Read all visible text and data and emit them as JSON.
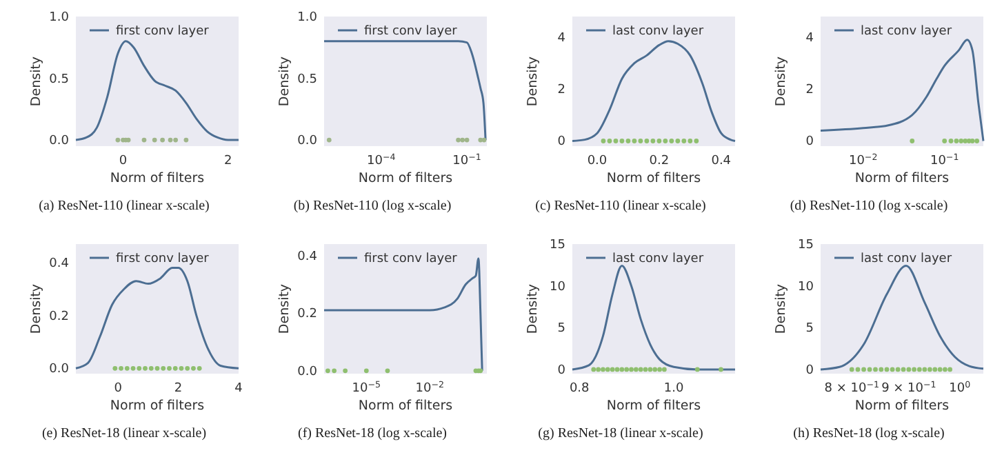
{
  "chart_data": [
    {
      "type": "line",
      "title": "(a) ResNet-110 (linear x-scale)",
      "xlabel": "Norm of filters",
      "ylabel": "Density",
      "legend": "top",
      "xlim": [
        -0.9,
        2.2
      ],
      "ylim": [
        -0.05,
        1.0
      ],
      "xticks": [
        0,
        2
      ],
      "yticks": [
        {
          "value": 0,
          "label": "0.0"
        },
        {
          "value": 0.5,
          "label": "0.5"
        },
        {
          "value": 1,
          "label": "1.0"
        }
      ],
      "series": [
        {
          "name": "first conv layer",
          "color": "#4c6e92",
          "x": [
            -0.9,
            -0.7,
            -0.5,
            -0.3,
            -0.1,
            0.05,
            0.2,
            0.4,
            0.6,
            0.8,
            1.0,
            1.2,
            1.4,
            1.6,
            1.8,
            2.0,
            2.2
          ],
          "values": [
            0,
            0.02,
            0.1,
            0.35,
            0.7,
            0.8,
            0.75,
            0.6,
            0.48,
            0.44,
            0.4,
            0.3,
            0.17,
            0.07,
            0.02,
            0,
            0
          ]
        },
        {
          "type": "scatter",
          "marker": "circle",
          "color": "#9fb58a",
          "x": [
            -0.1,
            0,
            0.05,
            0.1,
            0.4,
            0.6,
            0.75,
            0.9,
            1.0,
            1.2
          ],
          "values": [
            0,
            0,
            0,
            0,
            0,
            0,
            0,
            0,
            0,
            0
          ]
        }
      ]
    },
    {
      "type": "line",
      "title": "(b) ResNet-110 (log x-scale)",
      "xlabel": "Norm of filters",
      "ylabel": "Density",
      "legend": "top",
      "log": "x",
      "xlim": [
        1e-06,
        0.5
      ],
      "ylim": [
        -0.05,
        1.0
      ],
      "xticks": [
        {
          "value": 0.0001,
          "label": "10$^{−4}$"
        },
        {
          "value": 0.1,
          "label": "10$^{−1}$"
        }
      ],
      "yticks": [
        {
          "value": 0,
          "label": "0.0"
        },
        {
          "value": 0.5,
          "label": "0.5"
        },
        {
          "value": 1,
          "label": "1.0"
        }
      ],
      "series": [
        {
          "name": "first conv layer",
          "color": "#4c6e92",
          "x": [
            1e-06,
            0.0001,
            0.01,
            0.05,
            0.1,
            0.15,
            0.25,
            0.3,
            0.38,
            0.45
          ],
          "values": [
            0.8,
            0.8,
            0.8,
            0.8,
            0.79,
            0.7,
            0.5,
            0.42,
            0.3,
            0
          ]
        },
        {
          "type": "scatter",
          "marker": "circle",
          "color": "#9fb58a",
          "x": [
            1.5e-06,
            0.05,
            0.07,
            0.1,
            0.3,
            0.4
          ],
          "values": [
            0,
            0,
            0,
            0,
            0,
            0
          ]
        }
      ]
    },
    {
      "type": "line",
      "title": "(c) ResNet-110 (linear x-scale)",
      "xlabel": "Norm of filters",
      "ylabel": "Density",
      "legend": "top",
      "xlim": [
        -0.08,
        0.445
      ],
      "ylim": [
        -0.2,
        4.8
      ],
      "xticks": [
        {
          "value": 0,
          "label": "0.0"
        },
        {
          "value": 0.2,
          "label": "0.2"
        },
        {
          "value": 0.4,
          "label": "0.4"
        }
      ],
      "yticks": [
        0,
        2,
        4
      ],
      "series": [
        {
          "name": "last conv layer",
          "color": "#4c6e92",
          "x": [
            -0.08,
            -0.04,
            0,
            0.04,
            0.08,
            0.12,
            0.16,
            0.2,
            0.23,
            0.26,
            0.3,
            0.34,
            0.37,
            0.4,
            0.43,
            0.445
          ],
          "values": [
            0,
            0.05,
            0.3,
            1.2,
            2.4,
            3.0,
            3.3,
            3.7,
            3.85,
            3.75,
            3.3,
            2.2,
            1.1,
            0.3,
            0.05,
            0
          ]
        },
        {
          "type": "scatter",
          "marker": "circle",
          "color": "#8fbf6f",
          "x": [
            0.02,
            0.04,
            0.06,
            0.08,
            0.1,
            0.12,
            0.14,
            0.16,
            0.18,
            0.2,
            0.22,
            0.24,
            0.26,
            0.28,
            0.3,
            0.32
          ],
          "values": [
            0,
            0,
            0,
            0,
            0,
            0,
            0,
            0,
            0,
            0,
            0,
            0,
            0,
            0,
            0,
            0
          ]
        }
      ]
    },
    {
      "type": "line",
      "title": "(d) ResNet-110 (log x-scale)",
      "xlabel": "Norm of filters",
      "ylabel": "Density",
      "legend": "top",
      "log": "x",
      "xlim": [
        0.003,
        0.3
      ],
      "ylim": [
        -0.2,
        4.8
      ],
      "xticks": [
        {
          "value": 0.01,
          "label": "10$^{−2}$"
        },
        {
          "value": 0.1,
          "label": "10$^{−1}$"
        }
      ],
      "yticks": [
        0,
        2,
        4
      ],
      "series": [
        {
          "name": "last conv layer",
          "color": "#4c6e92",
          "x": [
            0.003,
            0.01,
            0.02,
            0.04,
            0.06,
            0.08,
            0.1,
            0.15,
            0.19,
            0.22,
            0.26,
            0.3
          ],
          "values": [
            0.4,
            0.5,
            0.6,
            1.0,
            1.7,
            2.4,
            2.9,
            3.5,
            3.9,
            3.5,
            1.5,
            0
          ]
        },
        {
          "type": "scatter",
          "marker": "circle",
          "color": "#8fbf6f",
          "x": [
            0.04,
            0.1,
            0.12,
            0.14,
            0.16,
            0.18,
            0.2,
            0.22,
            0.25
          ],
          "values": [
            0,
            0,
            0,
            0,
            0,
            0,
            0,
            0,
            0
          ]
        }
      ]
    },
    {
      "type": "line",
      "title": "(e) ResNet-18 (linear x-scale)",
      "xlabel": "Norm of filters",
      "ylabel": "Density",
      "legend": "top",
      "xlim": [
        -1.4,
        4.0
      ],
      "ylim": [
        -0.02,
        0.47
      ],
      "xticks": [
        0,
        2,
        4
      ],
      "yticks": [
        {
          "value": 0,
          "label": "0.0"
        },
        {
          "value": 0.2,
          "label": "0.2"
        },
        {
          "value": 0.4,
          "label": "0.4"
        }
      ],
      "series": [
        {
          "name": "first conv layer",
          "color": "#4c6e92",
          "x": [
            -1.4,
            -1,
            -0.6,
            -0.2,
            0.2,
            0.6,
            1.0,
            1.4,
            1.8,
            2.0,
            2.3,
            2.6,
            3.0,
            3.4,
            4.0
          ],
          "values": [
            0,
            0.02,
            0.12,
            0.24,
            0.3,
            0.33,
            0.32,
            0.34,
            0.38,
            0.38,
            0.33,
            0.2,
            0.07,
            0.01,
            0
          ]
        },
        {
          "type": "scatter",
          "marker": "circle",
          "color": "#8fbf6f",
          "x": [
            -0.1,
            0.1,
            0.3,
            0.5,
            0.7,
            0.9,
            1.1,
            1.3,
            1.5,
            1.7,
            1.9,
            2.1,
            2.3,
            2.5,
            2.7
          ],
          "values": [
            0,
            0,
            0,
            0,
            0,
            0,
            0,
            0,
            0,
            0,
            0,
            0,
            0,
            0,
            0
          ]
        }
      ]
    },
    {
      "type": "line",
      "title": "(f) ResNet-18 (log x-scale)",
      "xlabel": "Norm of filters",
      "ylabel": "Density",
      "legend": "top",
      "log": "x",
      "xlim": [
        1e-07,
        5
      ],
      "ylim": [
        -0.01,
        0.44
      ],
      "xticks": [
        {
          "value": 1e-05,
          "label": "10$^{−5}$"
        },
        {
          "value": 0.01,
          "label": "10$^{−2}$"
        }
      ],
      "yticks": [
        {
          "value": 0,
          "label": "0.0"
        },
        {
          "value": 0.2,
          "label": "0.2"
        },
        {
          "value": 0.4,
          "label": "0.4"
        }
      ],
      "series": [
        {
          "name": "first conv layer",
          "color": "#4c6e92",
          "x": [
            1e-07,
            0.0001,
            0.01,
            0.05,
            0.2,
            0.5,
            1,
            1.5,
            2,
            2.5,
            3
          ],
          "values": [
            0.21,
            0.21,
            0.21,
            0.22,
            0.25,
            0.3,
            0.32,
            0.33,
            0.39,
            0.2,
            0
          ]
        },
        {
          "type": "scatter",
          "marker": "circle",
          "color": "#8fbf6f",
          "x": [
            1.5e-07,
            3e-07,
            1e-06,
            1e-05,
            0.0001,
            1.5,
            2,
            2.5
          ],
          "values": [
            0,
            0,
            0,
            0,
            0,
            0,
            0,
            0
          ]
        }
      ]
    },
    {
      "type": "line",
      "title": "(g) ResNet-18 (linear x-scale)",
      "xlabel": "Norm of filters",
      "ylabel": "Density",
      "legend": "top",
      "xlim": [
        0.785,
        1.13
      ],
      "ylim": [
        -0.5,
        15
      ],
      "xticks": [
        {
          "value": 0.8,
          "label": "0.8"
        },
        {
          "value": 1.0,
          "label": "1.0"
        }
      ],
      "yticks": [
        0,
        5,
        10,
        15
      ],
      "series": [
        {
          "name": "last conv layer",
          "color": "#4c6e92",
          "x": [
            0.785,
            0.82,
            0.85,
            0.87,
            0.89,
            0.91,
            0.93,
            0.95,
            0.97,
            1.0,
            1.05,
            1.13
          ],
          "values": [
            0,
            0.5,
            4,
            9,
            12.4,
            10,
            6,
            3,
            1.2,
            0.3,
            0,
            0
          ]
        },
        {
          "type": "scatter",
          "marker": "circle",
          "color": "#8fbf6f",
          "x": [
            0.83,
            0.84,
            0.85,
            0.86,
            0.87,
            0.88,
            0.89,
            0.9,
            0.91,
            0.92,
            0.93,
            0.94,
            0.95,
            0.96,
            0.97,
            0.98,
            1.05,
            1.1
          ],
          "values": [
            0,
            0,
            0,
            0,
            0,
            0,
            0,
            0,
            0,
            0,
            0,
            0,
            0,
            0,
            0,
            0,
            0,
            0
          ]
        }
      ]
    },
    {
      "type": "line",
      "title": "(h) ResNet-18 (log x-scale)",
      "xlabel": "Norm of filters",
      "ylabel": "Density",
      "legend": "top",
      "log": "x",
      "xlim": [
        0.75,
        1.05
      ],
      "ylim": [
        -0.5,
        15
      ],
      "xticks": [
        {
          "value": 0.8,
          "label": "8 × 10$^{−1}$"
        },
        {
          "value": 0.9,
          "label": "9 × 10$^{−1}$"
        },
        {
          "value": 1,
          "label": "10$^{0}$"
        }
      ],
      "yticks": [
        0,
        5,
        10,
        15
      ],
      "series": [
        {
          "name": "last conv layer",
          "color": "#4c6e92",
          "x": [
            0.75,
            0.78,
            0.82,
            0.86,
            0.895,
            0.93,
            0.96,
            0.99,
            1.02,
            1.05
          ],
          "values": [
            0,
            0.3,
            3,
            9,
            12.4,
            8,
            4,
            1.5,
            0.4,
            0.1
          ]
        },
        {
          "type": "scatter",
          "marker": "circle",
          "color": "#8fbf6f",
          "x": [
            0.8,
            0.81,
            0.82,
            0.83,
            0.84,
            0.85,
            0.86,
            0.87,
            0.88,
            0.89,
            0.9,
            0.91,
            0.92,
            0.93,
            0.94,
            0.95,
            0.96,
            0.97,
            0.98
          ],
          "values": [
            0,
            0,
            0,
            0,
            0,
            0,
            0,
            0,
            0,
            0,
            0,
            0,
            0,
            0,
            0,
            0,
            0,
            0,
            0
          ]
        }
      ]
    }
  ]
}
